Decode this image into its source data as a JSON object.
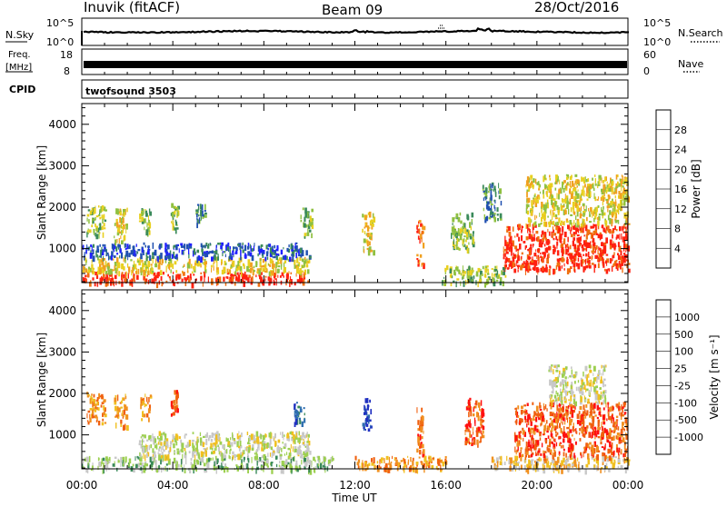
{
  "header": {
    "station": "Inuvik (fitACF)",
    "beam": "Beam 09",
    "date": "28/Oct/2016"
  },
  "status_panels": {
    "nsky_label": "N.Sky",
    "nsky_ticks": [
      "10^5",
      "10^0"
    ],
    "nsearch_label": "N.Search",
    "nsearch_ticks": [
      "10^5",
      "10^0"
    ],
    "freq_label_1": "Freq.",
    "freq_label_2": "[MHz]",
    "freq_ticks": [
      "18",
      "8"
    ],
    "nave_label": "Nave",
    "nave_ticks": [
      "60",
      "0"
    ],
    "cpid_label": "CPID",
    "cpid_value": "twofsound 3503"
  },
  "x_axis": {
    "title": "Time UT",
    "tick_labels": [
      "00:00",
      "04:00",
      "08:00",
      "12:00",
      "16:00",
      "20:00",
      "00:00"
    ],
    "range_hours": [
      0,
      24
    ]
  },
  "colors": {
    "power": [
      "#2020ff",
      "#2050b0",
      "#3a8a5a",
      "#8fc040",
      "#e8d020",
      "#f0a020",
      "#f07010",
      "#ff2010"
    ],
    "velocity": [
      "#2030c0",
      "#2f6fb0",
      "#3a8a5a",
      "#9ccf50",
      "#c8c8c8",
      "#f0c020",
      "#f09020",
      "#f06010",
      "#ff1010"
    ]
  },
  "chart_data": [
    {
      "type": "heatmap",
      "title": "",
      "xlabel": "",
      "ylabel": "Slant Range [km]",
      "xlim": [
        0,
        24
      ],
      "ylim": [
        180,
        4500
      ],
      "y_ticks": [
        1000,
        2000,
        3000,
        4000
      ],
      "colorbar": {
        "label": "Power [dB]",
        "ticks": [
          4,
          8,
          12,
          16,
          20,
          24,
          28
        ],
        "range": [
          0,
          32
        ]
      },
      "regions": [
        {
          "t0": 0.0,
          "t1": 10.0,
          "r0": 180,
          "r1": 450,
          "level": 7
        },
        {
          "t0": 0.0,
          "t1": 10.0,
          "r0": 450,
          "r1": 800,
          "level": 4
        },
        {
          "t0": 0.0,
          "t1": 10.0,
          "r0": 800,
          "r1": 1150,
          "level": 1
        },
        {
          "t0": 0.2,
          "t1": 1.0,
          "r0": 1300,
          "r1": 2050,
          "level": 3
        },
        {
          "t0": 1.4,
          "t1": 2.0,
          "r0": 1200,
          "r1": 2000,
          "level": 4
        },
        {
          "t0": 2.5,
          "t1": 3.0,
          "r0": 1400,
          "r1": 2000,
          "level": 3
        },
        {
          "t0": 3.9,
          "t1": 4.2,
          "r0": 1500,
          "r1": 2100,
          "level": 3
        },
        {
          "t0": 5.0,
          "t1": 5.4,
          "r0": 1600,
          "r1": 2100,
          "level": 2
        },
        {
          "t0": 9.6,
          "t1": 10.1,
          "r0": 1300,
          "r1": 2000,
          "level": 3
        },
        {
          "t0": 12.3,
          "t1": 12.8,
          "r0": 950,
          "r1": 1900,
          "level": 4
        },
        {
          "t0": 14.7,
          "t1": 15.0,
          "r0": 600,
          "r1": 1700,
          "level": 6
        },
        {
          "t0": 16.2,
          "t1": 17.2,
          "r0": 1000,
          "r1": 1900,
          "level": 3
        },
        {
          "t0": 17.6,
          "t1": 18.4,
          "r0": 1700,
          "r1": 2600,
          "level": 2
        },
        {
          "t0": 18.5,
          "t1": 24.0,
          "r0": 500,
          "r1": 1600,
          "level": 7
        },
        {
          "t0": 19.5,
          "t1": 24.0,
          "r0": 1600,
          "r1": 2800,
          "level": 4
        },
        {
          "t0": 15.8,
          "t1": 18.6,
          "r0": 180,
          "r1": 600,
          "level": 3
        }
      ]
    },
    {
      "type": "heatmap",
      "title": "",
      "xlabel": "Time UT",
      "ylabel": "Slant Range [km]",
      "xlim": [
        0,
        24
      ],
      "ylim": [
        180,
        4500
      ],
      "y_ticks": [
        1000,
        2000,
        3000,
        4000
      ],
      "colorbar": {
        "label": "Velocity [m s⁻¹]",
        "ticks": [
          "1000",
          "500",
          "100",
          "25",
          "-25",
          "-100",
          "-500",
          "-1000"
        ]
      },
      "regions": [
        {
          "t0": 0.0,
          "t1": 11.0,
          "r0": 180,
          "r1": 500,
          "level": 3
        },
        {
          "t0": 2.5,
          "t1": 10.0,
          "r0": 500,
          "r1": 1100,
          "level": 4
        },
        {
          "t0": 0.2,
          "t1": 1.0,
          "r0": 1300,
          "r1": 2050,
          "level": 6
        },
        {
          "t0": 1.4,
          "t1": 2.0,
          "r0": 1200,
          "r1": 2000,
          "level": 6
        },
        {
          "t0": 2.5,
          "t1": 3.0,
          "r0": 1400,
          "r1": 2000,
          "level": 6
        },
        {
          "t0": 3.9,
          "t1": 4.2,
          "r0": 1500,
          "r1": 2100,
          "level": 7
        },
        {
          "t0": 9.3,
          "t1": 9.8,
          "r0": 1300,
          "r1": 1800,
          "level": 1
        },
        {
          "t0": 12.3,
          "t1": 12.7,
          "r0": 1100,
          "r1": 1900,
          "level": 0
        },
        {
          "t0": 14.7,
          "t1": 15.0,
          "r0": 600,
          "r1": 1700,
          "level": 7
        },
        {
          "t0": 16.8,
          "t1": 17.6,
          "r0": 800,
          "r1": 1900,
          "level": 7
        },
        {
          "t0": 18.0,
          "t1": 24.0,
          "r0": 180,
          "r1": 500,
          "level": 5
        },
        {
          "t0": 19.0,
          "t1": 24.0,
          "r0": 500,
          "r1": 1800,
          "level": 7
        },
        {
          "t0": 20.5,
          "t1": 23.0,
          "r0": 1800,
          "r1": 2700,
          "level": 4
        },
        {
          "t0": 12.0,
          "t1": 16.0,
          "r0": 180,
          "r1": 500,
          "level": 6
        }
      ]
    }
  ]
}
